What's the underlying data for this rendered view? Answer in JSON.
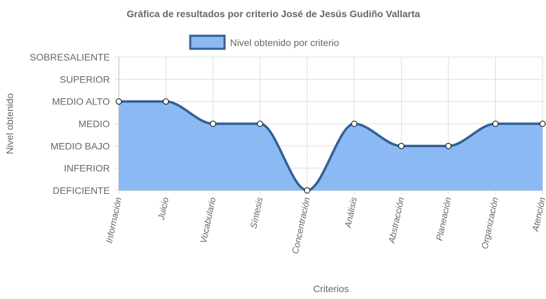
{
  "chart_data": {
    "type": "area",
    "title": "Gráfica de resultados por criterio José de Jesús Gudiño Vallarta",
    "xlabel": "Criterios",
    "ylabel": "Nivel obtenido",
    "categories": [
      "Información",
      "Juicio",
      "Vocabulario",
      "Síntesis",
      "Concentración",
      "Análisis",
      "Abstracción",
      "Planeación",
      "Organización",
      "Atención"
    ],
    "y_levels": [
      "DEFICIENTE",
      "INFERIOR",
      "MEDIO BAJO",
      "MEDIO",
      "MEDIO ALTO",
      "SUPERIOR",
      "SOBRESALIENTE"
    ],
    "ylim": [
      0,
      6
    ],
    "series": [
      {
        "name": "Nivel obtenido por criterio",
        "values": [
          4,
          4,
          3,
          3,
          0,
          3,
          2,
          2,
          3,
          3
        ],
        "value_labels": [
          "MEDIO ALTO",
          "MEDIO ALTO",
          "MEDIO",
          "MEDIO",
          "DEFICIENTE",
          "MEDIO",
          "MEDIO BAJO",
          "MEDIO BAJO",
          "MEDIO",
          "MEDIO"
        ]
      }
    ],
    "legend": "top-center",
    "grid": true,
    "colors": {
      "fill": "#8ab9f4",
      "line": "#335f95",
      "grid": "#dddddd",
      "point_fill": "#ffffff"
    }
  }
}
